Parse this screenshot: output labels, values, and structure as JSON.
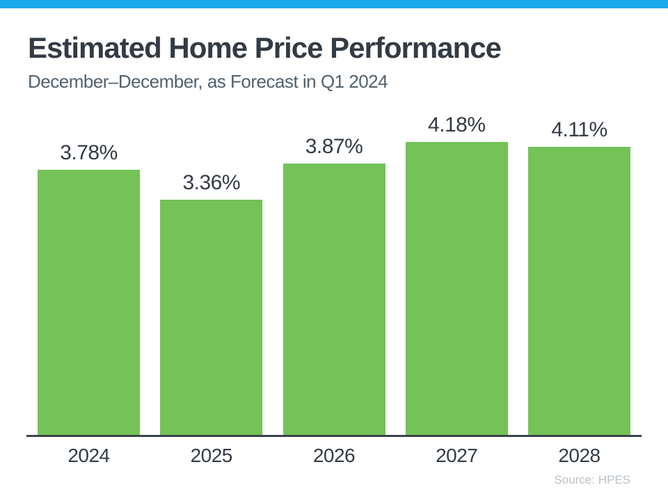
{
  "colors": {
    "accent": "#18a8ec",
    "bar": "#74c258",
    "title": "#333b44",
    "subtitle": "#52616c",
    "axis_line": "#3a444c",
    "source": "#b9c2c8"
  },
  "header": {
    "title": "Estimated Home Price Performance",
    "subtitle": "December–December, as Forecast in Q1 2024"
  },
  "source_note": "Source: HPES",
  "chart_data": {
    "type": "bar",
    "title": "Estimated Home Price Performance",
    "subtitle": "December–December, as Forecast in Q1 2024",
    "categories": [
      "2024",
      "2025",
      "2026",
      "2027",
      "2028"
    ],
    "values": [
      3.78,
      3.36,
      3.87,
      4.18,
      4.11
    ],
    "value_labels": [
      "3.78%",
      "3.36%",
      "3.87%",
      "4.18%",
      "4.11%"
    ],
    "xlabel": "",
    "ylabel": "",
    "ylim": [
      0,
      4.18
    ],
    "grid": false,
    "legend": "none",
    "bar_color": "#74c258",
    "value_label_position": "above-bar"
  }
}
